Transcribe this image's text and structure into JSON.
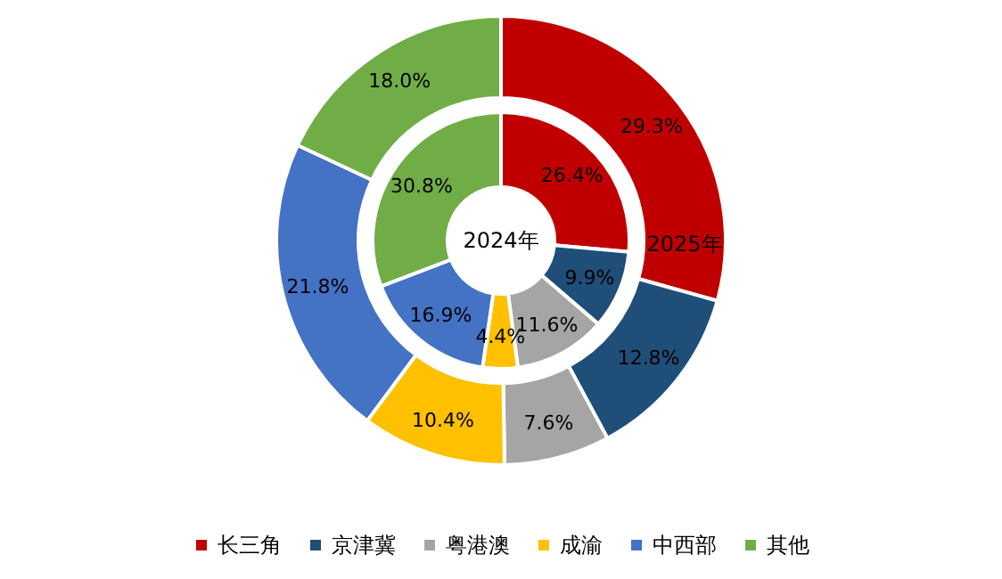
{
  "chart_data": {
    "type": "donut",
    "categories": [
      "长三角",
      "京津冀",
      "粤港澳",
      "成渝",
      "中西部",
      "其他"
    ],
    "colors": [
      "#c00000",
      "#1f4e79",
      "#a5a5a5",
      "#ffc000",
      "#4472c4",
      "#70ad47"
    ],
    "series": [
      {
        "name": "2024年",
        "values": [
          26.4,
          9.9,
          11.6,
          4.4,
          16.9,
          30.8
        ],
        "value_labels": [
          "26.4%",
          "9.9%",
          "11.6%",
          "4.4%",
          "16.9%",
          "30.8%"
        ]
      },
      {
        "name": "2025年",
        "values": [
          29.3,
          12.8,
          7.6,
          10.4,
          21.8,
          18.0
        ],
        "value_labels": [
          "29.3%",
          "12.8%",
          "7.6%",
          "10.4%",
          "21.8%",
          "18.0%"
        ]
      }
    ],
    "legend": "bottom"
  }
}
